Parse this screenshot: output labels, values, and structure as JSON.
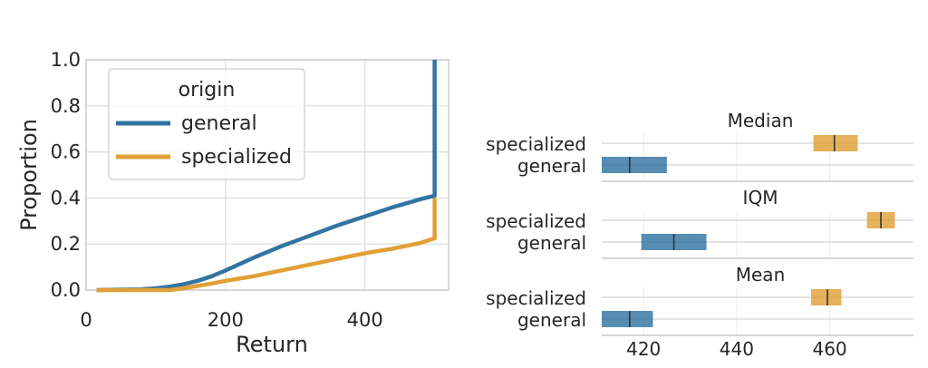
{
  "chart_data": [
    {
      "type": "line",
      "xlabel": "Return",
      "ylabel": "Proportion",
      "xlim": [
        0,
        520
      ],
      "ylim": [
        0,
        1.0
      ],
      "x_ticks": [
        0,
        200,
        400
      ],
      "y_ticks": [
        0.0,
        0.2,
        0.4,
        0.6,
        0.8,
        1.0
      ],
      "x_tick_labels": [
        "0",
        "200",
        "400"
      ],
      "y_tick_labels": [
        "0.0",
        "0.2",
        "0.4",
        "0.6",
        "0.8",
        "1.0"
      ],
      "grid": true,
      "legend": {
        "title": "origin",
        "placement": "top-left",
        "entries": [
          {
            "label": "general",
            "color": "#3274a1"
          },
          {
            "label": "specialized",
            "color": "#e1a036"
          }
        ]
      },
      "series": [
        {
          "name": "general",
          "color": "#3274a1",
          "x": [
            15,
            80,
            100,
            120,
            140,
            160,
            180,
            200,
            240,
            280,
            320,
            360,
            400,
            440,
            480,
            500,
            500
          ],
          "y": [
            0.0,
            0.003,
            0.008,
            0.015,
            0.025,
            0.04,
            0.06,
            0.085,
            0.14,
            0.19,
            0.235,
            0.28,
            0.32,
            0.36,
            0.395,
            0.41,
            1.0
          ]
        },
        {
          "name": "specialized",
          "color": "#e1a036",
          "x": [
            15,
            120,
            140,
            160,
            180,
            200,
            240,
            280,
            320,
            360,
            400,
            440,
            480,
            500,
            500
          ],
          "y": [
            0.0,
            0.0,
            0.008,
            0.018,
            0.028,
            0.04,
            0.06,
            0.085,
            0.11,
            0.135,
            0.16,
            0.18,
            0.205,
            0.225,
            0.4
          ]
        }
      ]
    },
    {
      "type": "interval",
      "x_ticks": [
        420,
        440,
        460
      ],
      "x_tick_labels": [
        "420",
        "440",
        "460"
      ],
      "xlim": [
        411,
        478
      ],
      "grid": true,
      "category_labels": [
        "specialized",
        "general"
      ],
      "panels": [
        {
          "title": "Median",
          "intervals": [
            {
              "name": "specialized",
              "low": 456.5,
              "high": 466.0,
              "point": 461.0,
              "color": "#e1a036"
            },
            {
              "name": "general",
              "low": 411.0,
              "high": 425.0,
              "point": 417.0,
              "color": "#3274a1"
            }
          ]
        },
        {
          "title": "IQM",
          "intervals": [
            {
              "name": "specialized",
              "low": 468.0,
              "high": 474.0,
              "point": 471.0,
              "color": "#e1a036"
            },
            {
              "name": "general",
              "low": 419.5,
              "high": 433.5,
              "point": 426.5,
              "color": "#3274a1"
            }
          ]
        },
        {
          "title": "Mean",
          "intervals": [
            {
              "name": "specialized",
              "low": 456.0,
              "high": 462.5,
              "point": 459.5,
              "color": "#e1a036"
            },
            {
              "name": "general",
              "low": 411.0,
              "high": 422.0,
              "point": 417.0,
              "color": "#3274a1"
            }
          ]
        }
      ]
    }
  ]
}
